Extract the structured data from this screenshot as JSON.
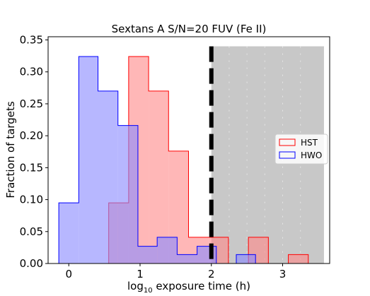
{
  "chart_data": {
    "type": "histogram",
    "title": "Sextans A S/N=20 FUV (Fe II)",
    "xlabel_prefix": "log",
    "xlabel_sub": "10",
    "xlabel_suffix": " exposure time (h)",
    "ylabel": "Fraction of targets",
    "xlim": [
      -0.29,
      3.66
    ],
    "ylim": [
      0,
      0.355
    ],
    "x_ticks": [
      0,
      1,
      2,
      3
    ],
    "x_tick_labels": [
      "0",
      "1",
      "2",
      "3"
    ],
    "y_ticks": [
      0,
      0.05,
      0.1,
      0.15,
      0.2,
      0.25,
      0.3,
      0.35
    ],
    "y_tick_labels": [
      "0.00",
      "0.05",
      "0.10",
      "0.15",
      "0.20",
      "0.25",
      "0.30",
      "0.35"
    ],
    "threshold_line_x": 2.0,
    "shaded_region": {
      "x0": 2.0,
      "x1": 3.58,
      "y1": 0.34
    },
    "legend_position": "center-right",
    "series": [
      {
        "name": "HST",
        "color": "#ff0000",
        "fill": "#ff8a8a",
        "bin_edges": [
          0.56,
          0.84,
          1.12,
          1.4,
          1.68,
          1.96,
          2.24,
          2.52,
          2.8,
          3.08,
          3.36,
          3.64
        ],
        "values": [
          0.095,
          0.324,
          0.27,
          0.176,
          0.041,
          0.041,
          0.0,
          0.041,
          0.0,
          0.014,
          0.0
        ]
      },
      {
        "name": "HWO",
        "color": "#0000ff",
        "fill": "#8a8aff",
        "bin_edges": [
          -0.14,
          0.14,
          0.41,
          0.69,
          0.97,
          1.24,
          1.52,
          1.8,
          2.07,
          2.35,
          2.62
        ],
        "values": [
          0.095,
          0.324,
          0.27,
          0.216,
          0.027,
          0.041,
          0.014,
          0.027,
          0.0,
          0.014
        ]
      }
    ]
  }
}
